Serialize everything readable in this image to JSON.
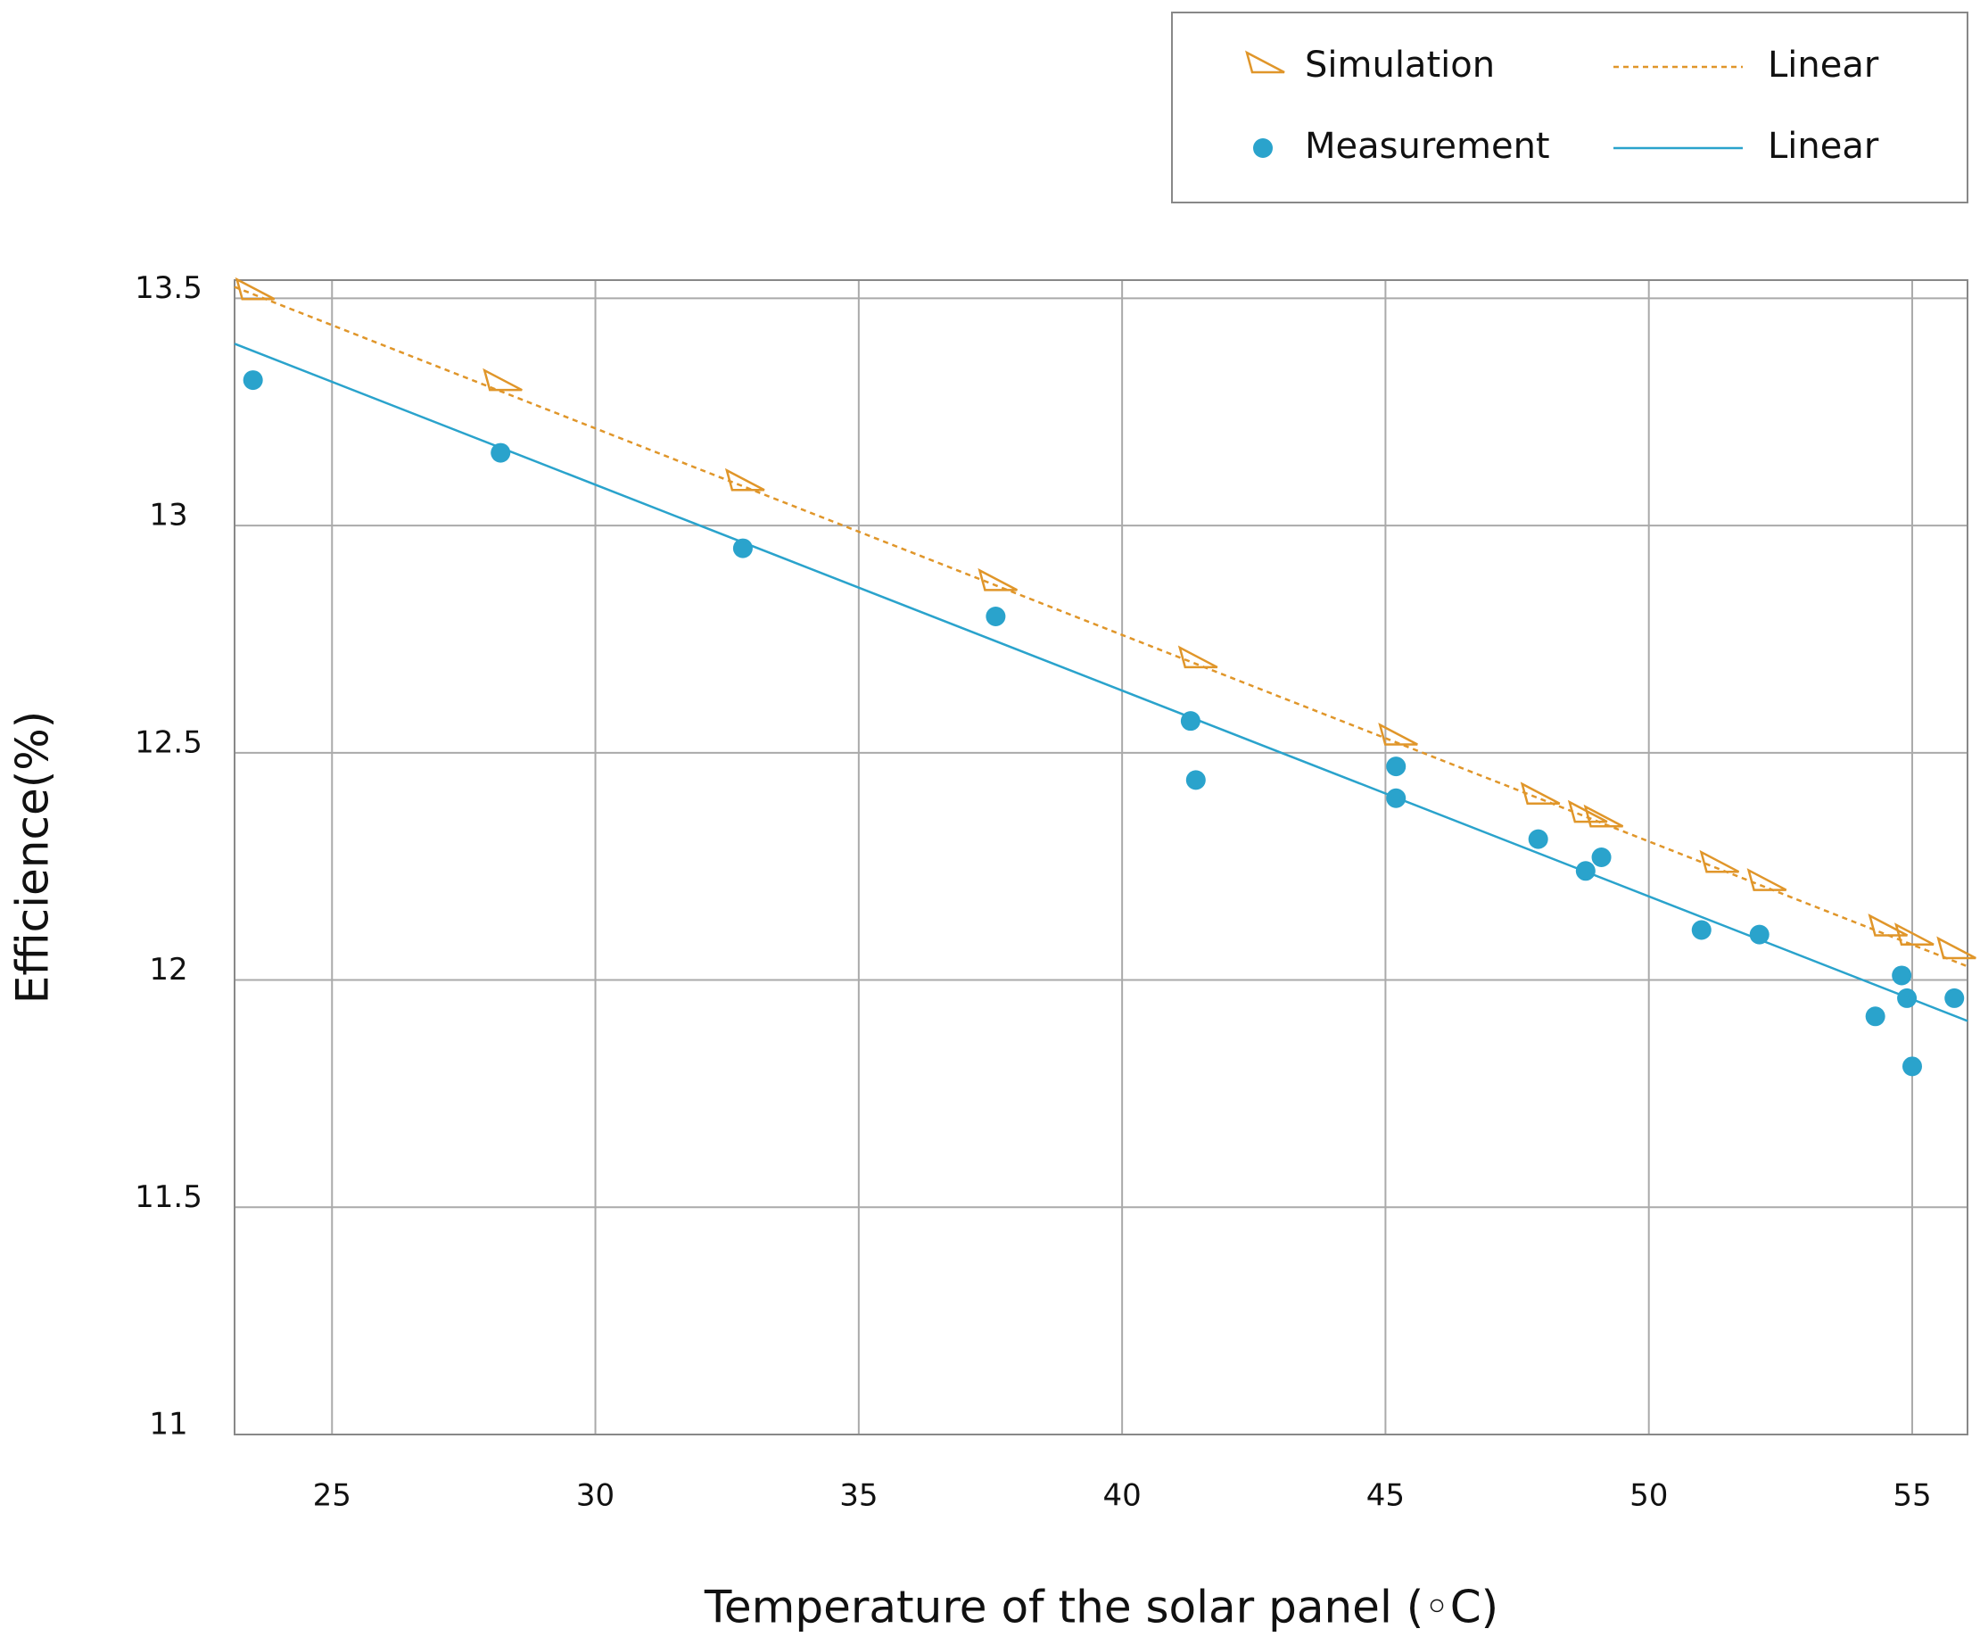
{
  "chart_data": {
    "type": "scatter",
    "x_label": "Temperature of the solar panel (◦C)",
    "y_label": "Efficience(%)",
    "xlim": [
      23.15,
      56.05
    ],
    "ylim": [
      11,
      13.54
    ],
    "xticks": [
      25,
      30,
      35,
      40,
      45,
      50,
      55
    ],
    "yticks": [
      11,
      11.5,
      12,
      12.5,
      13,
      13.5
    ],
    "grid": true,
    "legend": "top-right",
    "series": [
      {
        "name": "Simulation",
        "color": "#e0962a",
        "marker": "triangle",
        "x": [
          23.5,
          28.2,
          32.8,
          37.6,
          41.4,
          45.2,
          47.9,
          48.8,
          49.1,
          51.3,
          52.2,
          54.5,
          55.0,
          55.8
        ],
        "values": [
          13.51,
          13.31,
          13.09,
          12.87,
          12.7,
          12.53,
          12.4,
          12.36,
          12.35,
          12.25,
          12.21,
          12.11,
          12.09,
          12.06
        ]
      },
      {
        "name": "Measurement",
        "color": "#2aa3cc",
        "marker": "circle",
        "x": [
          23.5,
          28.2,
          32.8,
          37.6,
          41.3,
          41.4,
          45.2,
          45.2,
          47.9,
          48.8,
          49.1,
          51.0,
          52.1,
          54.3,
          54.8,
          54.9,
          55.0,
          55.8
        ],
        "values": [
          13.32,
          13.16,
          12.95,
          12.8,
          12.57,
          12.44,
          12.47,
          12.4,
          12.31,
          12.24,
          12.27,
          12.11,
          12.1,
          11.92,
          12.01,
          11.96,
          11.81,
          11.96
        ]
      },
      {
        "name": "Linear",
        "color": "#e0962a",
        "line_style": "dashed",
        "x": [
          23.15,
          56.05
        ],
        "values": [
          13.525,
          12.03
        ]
      },
      {
        "name": "Linear",
        "color": "#2aa3cc",
        "line_style": "solid",
        "x": [
          23.15,
          56.05
        ],
        "values": [
          13.4,
          11.91
        ]
      }
    ]
  }
}
